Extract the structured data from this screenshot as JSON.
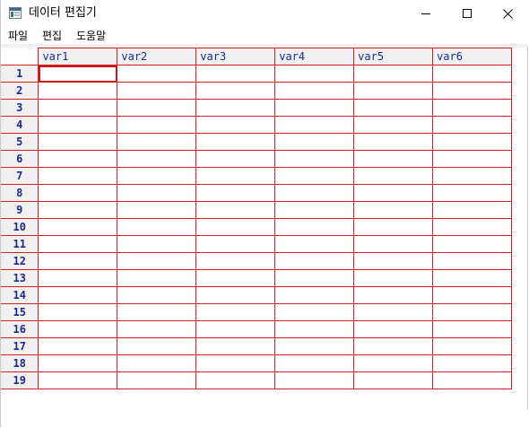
{
  "window": {
    "title": "데이터 편집기",
    "app_icon": "r-data-editor-icon",
    "controls": {
      "minimize_icon": "minimize-icon",
      "maximize_icon": "maximize-icon",
      "close_icon": "close-icon"
    }
  },
  "menu": {
    "file": "파일",
    "edit": "편집",
    "help": "도움말"
  },
  "grid": {
    "columns": [
      "var1",
      "var2",
      "var3",
      "var4",
      "var5",
      "var6"
    ],
    "rows": [
      "1",
      "2",
      "3",
      "4",
      "5",
      "6",
      "7",
      "8",
      "9",
      "10",
      "11",
      "12",
      "13",
      "14",
      "15",
      "16",
      "17",
      "18",
      "19"
    ],
    "selected_cell": {
      "row": "1",
      "column": "var1"
    }
  },
  "colors": {
    "grid_line": "#d02020",
    "header_text": "#1c2a8c",
    "header_bg": "#f0f0f0",
    "selection": "#d01818"
  }
}
